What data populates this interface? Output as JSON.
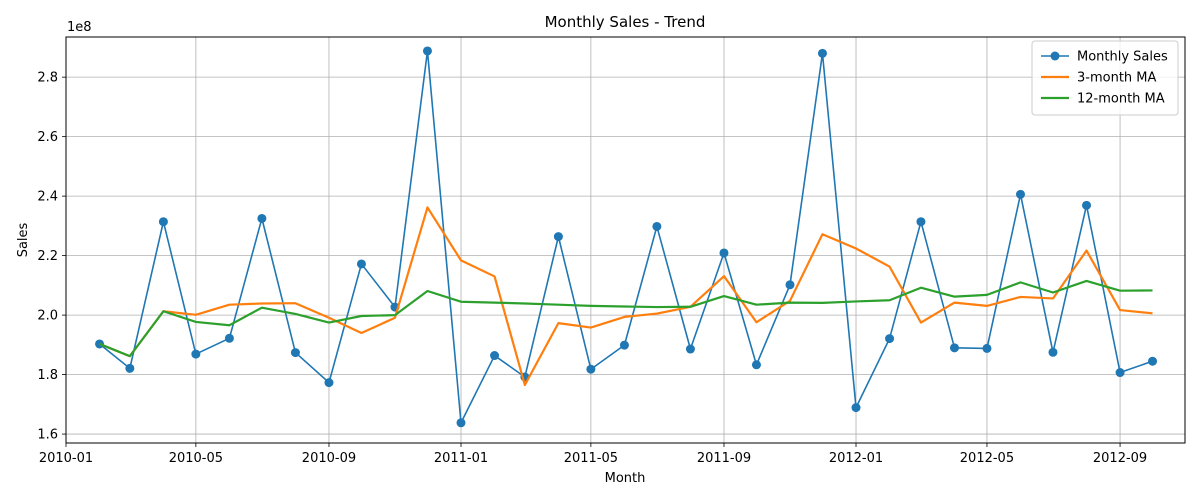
{
  "chart_data": {
    "type": "line",
    "title": "Monthly Sales - Trend",
    "xlabel": "Month",
    "ylabel": "Sales",
    "y_multiplier_label": "1e8",
    "y_multiplier": 100000000,
    "ylim": [
      1.57,
      2.935
    ],
    "xlim": [
      "2010-01-01",
      "2012-10-31"
    ],
    "grid": true,
    "legend_position": "top-right",
    "x_ticks": [
      "2010-01",
      "2010-05",
      "2010-09",
      "2011-01",
      "2011-05",
      "2011-09",
      "2012-01",
      "2012-05",
      "2012-09"
    ],
    "y_ticks": [
      "1.6",
      "1.8",
      "2.0",
      "2.2",
      "2.4",
      "2.6",
      "2.8"
    ],
    "x": [
      "2010-02-01",
      "2010-03-01",
      "2010-04-01",
      "2010-05-01",
      "2010-06-01",
      "2010-07-01",
      "2010-08-01",
      "2010-09-01",
      "2010-10-01",
      "2010-11-01",
      "2010-12-01",
      "2011-01-01",
      "2011-02-01",
      "2011-03-01",
      "2011-04-01",
      "2011-05-01",
      "2011-06-01",
      "2011-07-01",
      "2011-08-01",
      "2011-09-01",
      "2011-10-01",
      "2011-11-01",
      "2011-12-01",
      "2012-01-01",
      "2012-02-01",
      "2012-03-01",
      "2012-04-01",
      "2012-05-01",
      "2012-06-01",
      "2012-07-01",
      "2012-08-01",
      "2012-09-01",
      "2012-10-01"
    ],
    "series": [
      {
        "name": "Monthly Sales",
        "color": "#1f77b4",
        "markers": true,
        "values": [
          1.903,
          1.821,
          2.314,
          1.869,
          1.922,
          2.325,
          1.874,
          1.773,
          2.172,
          2.027,
          2.888,
          1.638,
          1.864,
          1.792,
          2.264,
          1.818,
          1.899,
          2.298,
          1.886,
          2.209,
          1.833,
          2.102,
          2.88,
          1.689,
          1.921,
          2.314,
          1.89,
          1.888,
          2.406,
          1.875,
          2.369,
          1.807,
          1.845
        ]
      },
      {
        "name": "3-month MA",
        "color": "#ff7f0e",
        "markers": false,
        "values": [
          1.903,
          1.862,
          2.013,
          2.001,
          2.035,
          2.039,
          2.04,
          1.991,
          1.94,
          1.991,
          2.362,
          2.184,
          2.13,
          1.765,
          1.973,
          1.958,
          1.994,
          2.005,
          2.028,
          2.131,
          1.976,
          2.048,
          2.272,
          2.224,
          2.163,
          1.975,
          2.042,
          2.031,
          2.061,
          2.056,
          2.217,
          2.017,
          2.006
        ]
      },
      {
        "name": "12-month MA",
        "color": "#2ca02c",
        "markers": false,
        "values": [
          1.903,
          1.862,
          2.013,
          1.977,
          1.966,
          2.025,
          2.004,
          1.975,
          1.997,
          2.0,
          2.081,
          2.045,
          2.042,
          2.039,
          2.035,
          2.031,
          2.029,
          2.027,
          2.028,
          2.064,
          2.035,
          2.042,
          2.041,
          2.046,
          2.05,
          2.092,
          2.062,
          2.068,
          2.11,
          2.076,
          2.115,
          2.082,
          2.083
        ]
      }
    ]
  }
}
